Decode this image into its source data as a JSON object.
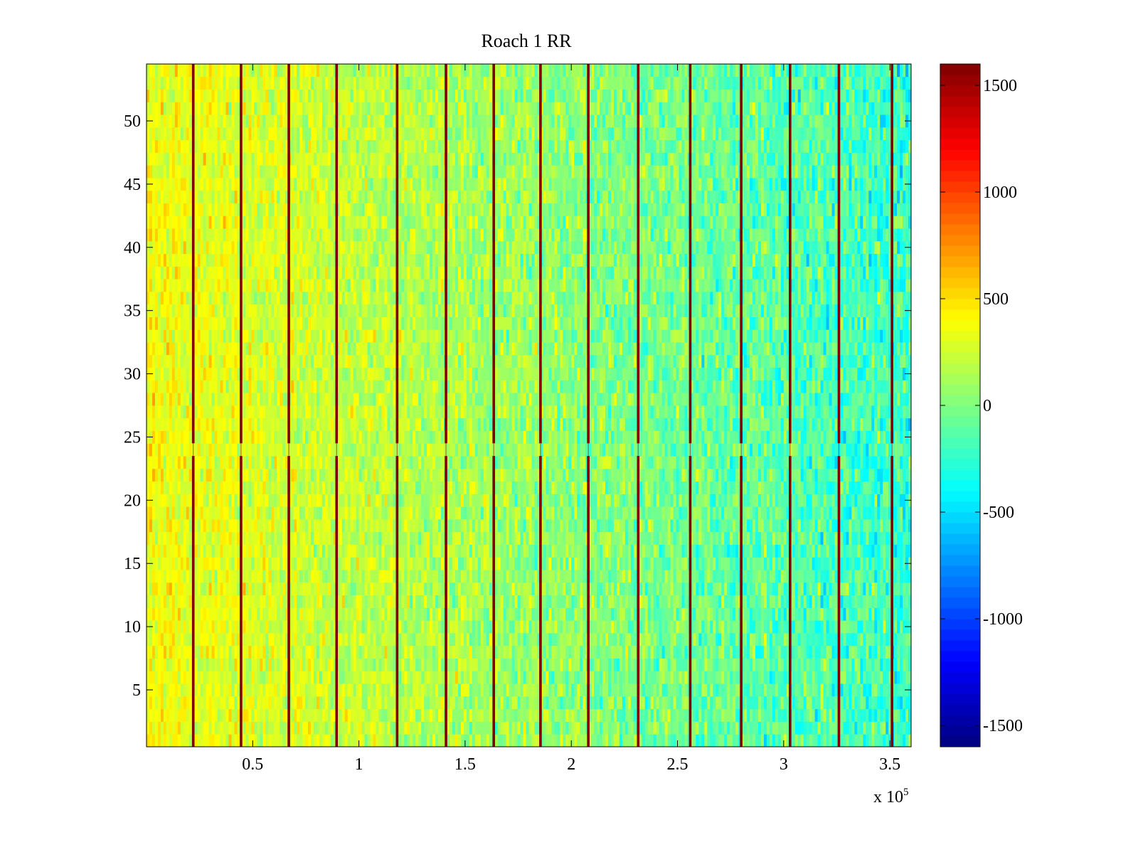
{
  "chart_data": {
    "type": "heatmap",
    "title": "Roach 1 RR",
    "xlabel": "",
    "ylabel": "",
    "x_exponent_label": "x 10",
    "x_exponent_sup": "5",
    "xlim": [
      0,
      3.6
    ],
    "ylim": [
      0.5,
      54.5
    ],
    "x_ticks": [
      0.5,
      1,
      1.5,
      2,
      2.5,
      3,
      3.5
    ],
    "x_tick_labels": [
      "0.5",
      "1",
      "1.5",
      "2",
      "2.5",
      "3",
      "3.5"
    ],
    "y_ticks": [
      5,
      10,
      15,
      20,
      25,
      30,
      35,
      40,
      45,
      50
    ],
    "y_tick_labels": [
      "5",
      "10",
      "15",
      "20",
      "25",
      "30",
      "35",
      "40",
      "45",
      "50"
    ],
    "rows": 54,
    "color_limits": [
      -1600,
      1600
    ],
    "colormap": "jet",
    "colorbar_ticks": [
      -1500,
      -1000,
      -500,
      0,
      500,
      1000,
      1500
    ],
    "colorbar_tick_labels": [
      "-1500",
      "-1000",
      "-500",
      "0",
      "500",
      "1000",
      "1500"
    ],
    "background_trend": {
      "x": [
        0,
        3.6
      ],
      "value": [
        380,
        -220
      ]
    },
    "spike_lines_x": [
      0.22,
      0.445,
      0.67,
      0.895,
      1.18,
      1.41,
      1.635,
      1.855,
      2.08,
      2.315,
      2.56,
      2.8,
      3.03,
      3.26,
      3.51
    ],
    "spike_value": 1500,
    "row_gap_y": 24,
    "grid": false
  }
}
